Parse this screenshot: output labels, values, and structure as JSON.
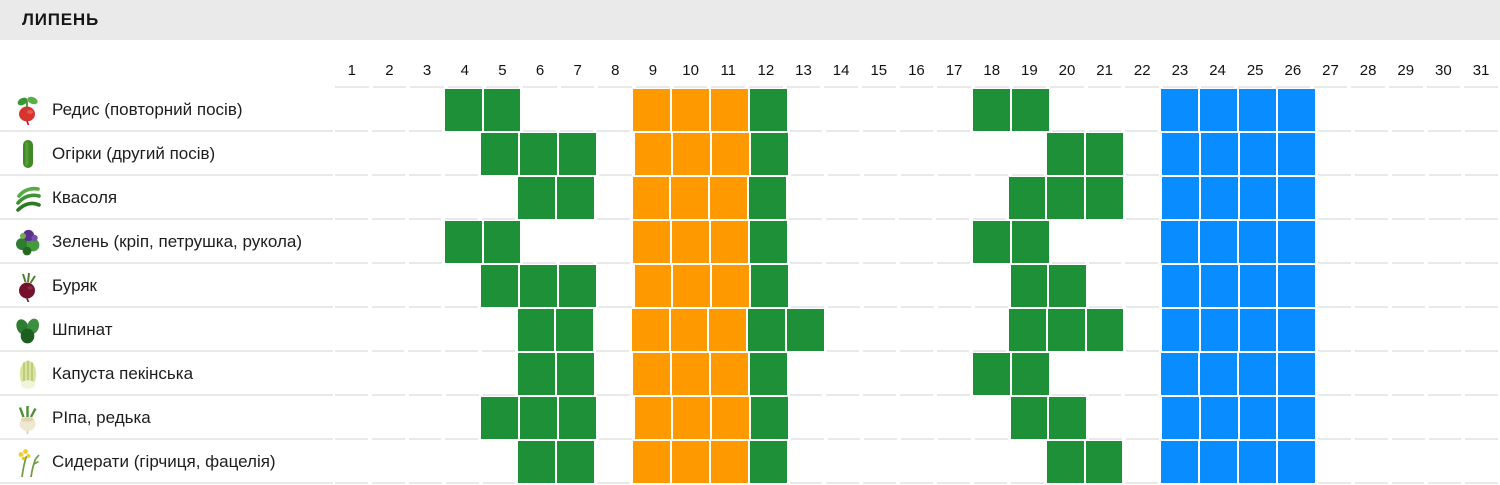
{
  "header": {
    "month_label": "ЛИПЕНЬ"
  },
  "chart_data": {
    "type": "heatmap",
    "title": "ЛИПЕНЬ",
    "x_ticks": [
      1,
      2,
      3,
      4,
      5,
      6,
      7,
      8,
      9,
      10,
      11,
      12,
      13,
      14,
      15,
      16,
      17,
      18,
      19,
      20,
      21,
      22,
      23,
      24,
      25,
      26,
      27,
      28,
      29,
      30,
      31
    ],
    "x_range": [
      1,
      31
    ],
    "cell_colors": {
      "green": "#1E9138",
      "orange": "#FF9900",
      "blue": "#098CFF"
    },
    "ui_colors": {
      "header_bg": "#EAEAEA",
      "grid_line": "#E9E9E9",
      "text": "#1C1C1C"
    },
    "rows": [
      {
        "label": "Редис (повторний посів)",
        "icon": "radish-icon",
        "green": [
          4,
          5,
          12,
          18,
          19
        ],
        "orange": [
          9,
          10,
          11
        ],
        "blue": [
          23,
          24,
          25,
          26
        ]
      },
      {
        "label": "Огірки (другий посів)",
        "icon": "cucumber-icon",
        "green": [
          5,
          6,
          7,
          12,
          20,
          21
        ],
        "orange": [
          9,
          10,
          11
        ],
        "blue": [
          23,
          24,
          25,
          26
        ]
      },
      {
        "label": "Квасоля",
        "icon": "green-beans-icon",
        "green": [
          6,
          7,
          12,
          19,
          20,
          21
        ],
        "orange": [
          9,
          10,
          11
        ],
        "blue": [
          23,
          24,
          25,
          26
        ]
      },
      {
        "label": "Зелень (кріп, петрушка, рукола)",
        "icon": "herbs-icon",
        "green": [
          4,
          5,
          12,
          18,
          19
        ],
        "orange": [
          9,
          10,
          11
        ],
        "blue": [
          23,
          24,
          25,
          26
        ]
      },
      {
        "label": "Буряк",
        "icon": "beet-icon",
        "green": [
          5,
          6,
          7,
          12,
          19,
          20
        ],
        "orange": [
          9,
          10,
          11
        ],
        "blue": [
          23,
          24,
          25,
          26
        ]
      },
      {
        "label": "Шпинат",
        "icon": "spinach-icon",
        "green": [
          6,
          7,
          12,
          13,
          19,
          20,
          21
        ],
        "orange": [
          9,
          10,
          11
        ],
        "blue": [
          23,
          24,
          25,
          26
        ]
      },
      {
        "label": "Капуста пекінська",
        "icon": "napa-cabbage-icon",
        "green": [
          6,
          7,
          12,
          18,
          19
        ],
        "orange": [
          9,
          10,
          11
        ],
        "blue": [
          23,
          24,
          25,
          26
        ]
      },
      {
        "label": "РІпа, редька",
        "icon": "turnip-icon",
        "green": [
          5,
          6,
          7,
          12,
          19,
          20
        ],
        "orange": [
          9,
          10,
          11
        ],
        "blue": [
          23,
          24,
          25,
          26
        ]
      },
      {
        "label": "Сидерати (гірчиця, фацелія)",
        "icon": "flowers-icon",
        "green": [
          6,
          7,
          12,
          20,
          21
        ],
        "orange": [
          9,
          10,
          11
        ],
        "blue": [
          23,
          24,
          25,
          26
        ]
      }
    ]
  }
}
